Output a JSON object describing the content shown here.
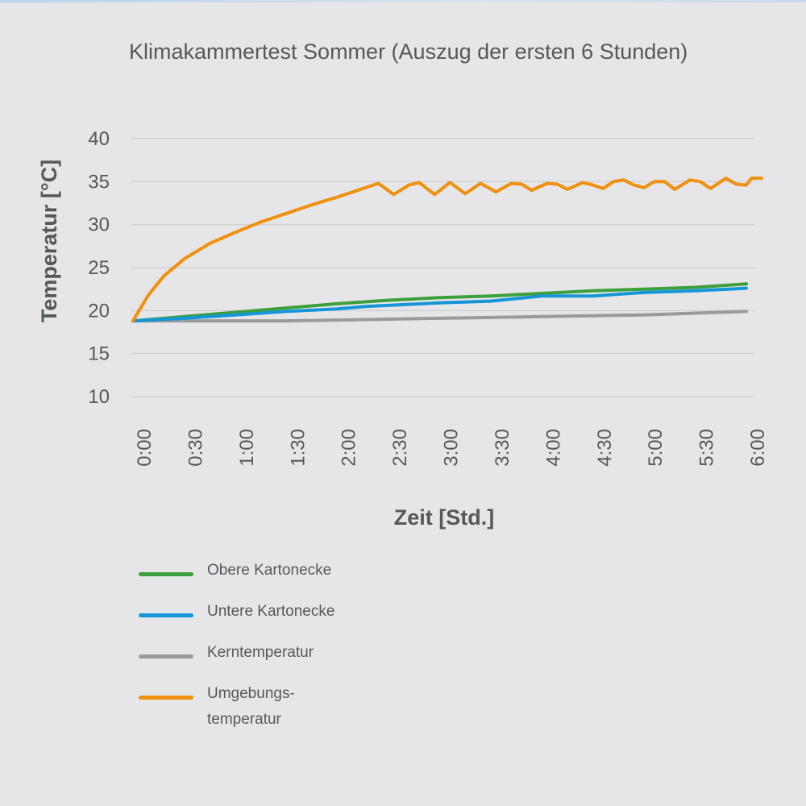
{
  "chart_data": {
    "type": "line",
    "title": "Klimakammertest Sommer (Auszug der ersten 6 Stunden)",
    "xlabel": "Zeit [Std.]",
    "ylabel": "Temperatur [°C]",
    "ylim": [
      10,
      40
    ],
    "yticks": [
      "10",
      "15",
      "20",
      "25",
      "30",
      "35",
      "40"
    ],
    "x_tick_labels": [
      "0:00",
      "0:30",
      "1:00",
      "1:30",
      "2:00",
      "2:30",
      "3:00",
      "3:30",
      "4:00",
      "4:30",
      "5:00",
      "5:30",
      "6:00"
    ],
    "x_unit": "hours",
    "xlim": [
      0,
      6
    ],
    "grid": true,
    "legend_position": "bottom-left",
    "series": [
      {
        "name": "Obere Kartonecke",
        "color": "#3ca03c",
        "points": [
          [
            0,
            18.8
          ],
          [
            0.5,
            19.3
          ],
          [
            1,
            19.8
          ],
          [
            1.5,
            20.3
          ],
          [
            2,
            20.8
          ],
          [
            2.5,
            21.2
          ],
          [
            3,
            21.5
          ],
          [
            3.5,
            21.7
          ],
          [
            4,
            22.0
          ],
          [
            4.5,
            22.3
          ],
          [
            5,
            22.5
          ],
          [
            5.5,
            22.7
          ],
          [
            6,
            23.1
          ]
        ]
      },
      {
        "name": "Untere Kartonecke",
        "color": "#1596d8",
        "points": [
          [
            0,
            18.8
          ],
          [
            0.5,
            19.1
          ],
          [
            1,
            19.5
          ],
          [
            1.5,
            19.9
          ],
          [
            2,
            20.2
          ],
          [
            2.3,
            20.5
          ],
          [
            2.5,
            20.6
          ],
          [
            3,
            20.9
          ],
          [
            3.5,
            21.1
          ],
          [
            4,
            21.7
          ],
          [
            4.25,
            21.7
          ],
          [
            4.5,
            21.7
          ],
          [
            5,
            22.1
          ],
          [
            5.5,
            22.3
          ],
          [
            6,
            22.6
          ]
        ]
      },
      {
        "name": "Kerntemperatur",
        "color": "#999a9c",
        "points": [
          [
            0,
            18.8
          ],
          [
            0.5,
            18.8
          ],
          [
            1,
            18.8
          ],
          [
            1.5,
            18.8
          ],
          [
            2,
            18.9
          ],
          [
            2.5,
            19.0
          ],
          [
            3,
            19.1
          ],
          [
            3.5,
            19.2
          ],
          [
            4,
            19.3
          ],
          [
            4.5,
            19.4
          ],
          [
            5,
            19.5
          ],
          [
            5.5,
            19.7
          ],
          [
            6,
            19.9
          ]
        ]
      },
      {
        "name": "Umgebungs- temperatur",
        "legend_lines": [
          "Umgebungs-",
          "temperatur"
        ],
        "color": "#f0900c",
        "points": [
          [
            0,
            18.8
          ],
          [
            0.15,
            21.8
          ],
          [
            0.3,
            24.0
          ],
          [
            0.5,
            26.0
          ],
          [
            0.75,
            27.8
          ],
          [
            1,
            29.1
          ],
          [
            1.25,
            30.3
          ],
          [
            1.5,
            31.3
          ],
          [
            1.75,
            32.3
          ],
          [
            2,
            33.2
          ],
          [
            2.2,
            34.0
          ],
          [
            2.4,
            34.8
          ],
          [
            2.55,
            33.5
          ],
          [
            2.7,
            34.6
          ],
          [
            2.8,
            34.9
          ],
          [
            2.95,
            33.5
          ],
          [
            3.1,
            34.9
          ],
          [
            3.25,
            33.6
          ],
          [
            3.4,
            34.8
          ],
          [
            3.55,
            33.8
          ],
          [
            3.7,
            34.8
          ],
          [
            3.8,
            34.7
          ],
          [
            3.9,
            34.0
          ],
          [
            4.05,
            34.8
          ],
          [
            4.15,
            34.7
          ],
          [
            4.25,
            34.1
          ],
          [
            4.4,
            34.9
          ],
          [
            4.5,
            34.6
          ],
          [
            4.6,
            34.2
          ],
          [
            4.7,
            35.0
          ],
          [
            4.8,
            35.2
          ],
          [
            4.9,
            34.6
          ],
          [
            5.0,
            34.3
          ],
          [
            5.1,
            35.0
          ],
          [
            5.2,
            35.0
          ],
          [
            5.3,
            34.1
          ],
          [
            5.45,
            35.2
          ],
          [
            5.55,
            35.0
          ],
          [
            5.65,
            34.2
          ],
          [
            5.8,
            35.4
          ],
          [
            5.9,
            34.7
          ],
          [
            6.0,
            34.6
          ],
          [
            6.05,
            35.4
          ],
          [
            6.15,
            35.4
          ]
        ]
      }
    ]
  }
}
